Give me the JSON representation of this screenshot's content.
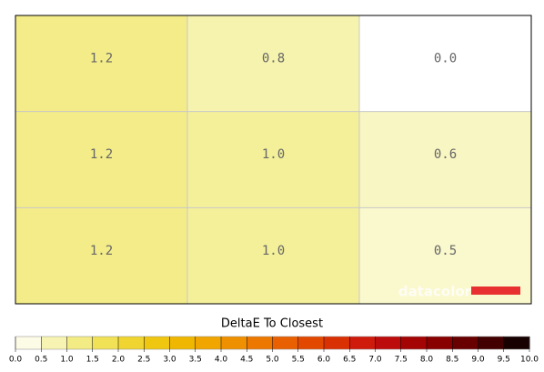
{
  "chart_data": {
    "type": "heatmap",
    "title": "DeltaE To Closest",
    "watermark": "datacolor",
    "values": [
      [
        1.2,
        0.8,
        0.0
      ],
      [
        1.2,
        1.0,
        0.6
      ],
      [
        1.2,
        1.0,
        0.5
      ]
    ],
    "value_labels": [
      [
        "1.2",
        "0.8",
        "0.0"
      ],
      [
        "1.2",
        "1.0",
        "0.6"
      ],
      [
        "1.2",
        "1.0",
        "0.5"
      ]
    ],
    "colorscale": [
      "#ffffff",
      "#f4f09a",
      "#f0dc40",
      "#f0c000",
      "#f09c00",
      "#ec6c00",
      "#e03c00",
      "#c81010",
      "#980000",
      "#580000",
      "#000000"
    ],
    "cticks": [
      {
        "value": 0,
        "label": "0.0"
      },
      0.5,
      {
        "value": 1,
        "label": "1.0"
      },
      1.5,
      {
        "value": 2,
        "label": "2.0"
      },
      2.5,
      {
        "value": 3,
        "label": "3.0"
      },
      3.5,
      {
        "value": 4,
        "label": "4.0"
      },
      4.5,
      {
        "value": 5,
        "label": "5.0"
      },
      5.5,
      {
        "value": 6,
        "label": "6.0"
      },
      6.5,
      {
        "value": 7,
        "label": "7.0"
      },
      7.5,
      {
        "value": 8,
        "label": "8.0"
      },
      8.5,
      {
        "value": 9,
        "label": "9.0"
      },
      9.5,
      {
        "value": 10,
        "label": "10.0"
      }
    ]
  }
}
